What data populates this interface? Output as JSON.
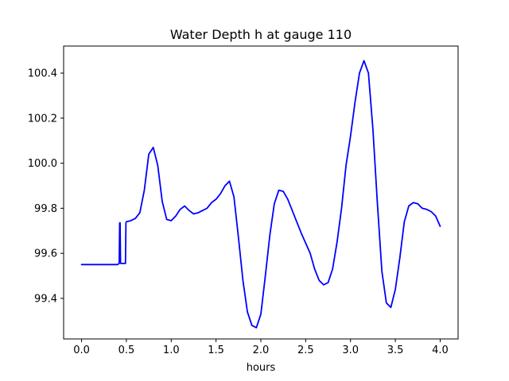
{
  "chart_data": {
    "type": "line",
    "title": "Water Depth h at gauge 110",
    "xlabel": "hours",
    "ylabel": "",
    "xlim": [
      -0.2,
      4.2
    ],
    "ylim": [
      99.22,
      100.52
    ],
    "xticks": [
      0.0,
      0.5,
      1.0,
      1.5,
      2.0,
      2.5,
      3.0,
      3.5,
      4.0
    ],
    "xtick_labels": [
      "0.0",
      "0.5",
      "1.0",
      "1.5",
      "2.0",
      "2.5",
      "3.0",
      "3.5",
      "4.0"
    ],
    "yticks": [
      99.4,
      99.6,
      99.8,
      100.0,
      100.2,
      100.4
    ],
    "ytick_labels": [
      "99.4",
      "99.6",
      "99.8",
      "100.0",
      "100.2",
      "100.4"
    ],
    "grid": false,
    "color": "#0000ff",
    "series": [
      {
        "x": [
          0.0,
          0.1,
          0.2,
          0.3,
          0.4,
          0.42,
          0.425,
          0.43,
          0.435,
          0.44,
          0.45,
          0.48,
          0.49,
          0.495,
          0.5,
          0.55,
          0.6,
          0.65,
          0.7,
          0.75,
          0.8,
          0.85,
          0.9,
          0.95,
          1.0,
          1.05,
          1.1,
          1.15,
          1.2,
          1.25,
          1.3,
          1.35,
          1.4,
          1.45,
          1.5,
          1.55,
          1.6,
          1.65,
          1.7,
          1.75,
          1.8,
          1.85,
          1.9,
          1.95,
          2.0,
          2.05,
          2.1,
          2.15,
          2.2,
          2.25,
          2.3,
          2.35,
          2.4,
          2.45,
          2.5,
          2.55,
          2.6,
          2.65,
          2.7,
          2.75,
          2.8,
          2.85,
          2.9,
          2.95,
          3.0,
          3.05,
          3.1,
          3.15,
          3.2,
          3.25,
          3.3,
          3.35,
          3.4,
          3.45,
          3.5,
          3.55,
          3.6,
          3.65,
          3.7,
          3.75,
          3.8,
          3.85,
          3.9,
          3.95,
          4.0
        ],
        "y": [
          99.55,
          99.55,
          99.55,
          99.55,
          99.55,
          99.555,
          99.735,
          99.735,
          99.556,
          99.555,
          99.555,
          99.555,
          99.555,
          99.735,
          99.74,
          99.745,
          99.755,
          99.78,
          99.88,
          100.04,
          100.07,
          99.99,
          99.83,
          99.75,
          99.745,
          99.765,
          99.795,
          99.81,
          99.79,
          99.775,
          99.78,
          99.79,
          99.8,
          99.825,
          99.84,
          99.865,
          99.9,
          99.92,
          99.85,
          99.67,
          99.48,
          99.34,
          99.28,
          99.27,
          99.33,
          99.5,
          99.68,
          99.82,
          99.88,
          99.875,
          99.84,
          99.79,
          99.74,
          99.69,
          99.645,
          99.6,
          99.53,
          99.48,
          99.46,
          99.47,
          99.53,
          99.65,
          99.8,
          99.99,
          100.12,
          100.27,
          100.4,
          100.455,
          100.4,
          100.15,
          99.82,
          99.52,
          99.38,
          99.36,
          99.44,
          99.58,
          99.74,
          99.81,
          99.825,
          99.82,
          99.8,
          99.795,
          99.785,
          99.765,
          99.72
        ]
      }
    ]
  }
}
